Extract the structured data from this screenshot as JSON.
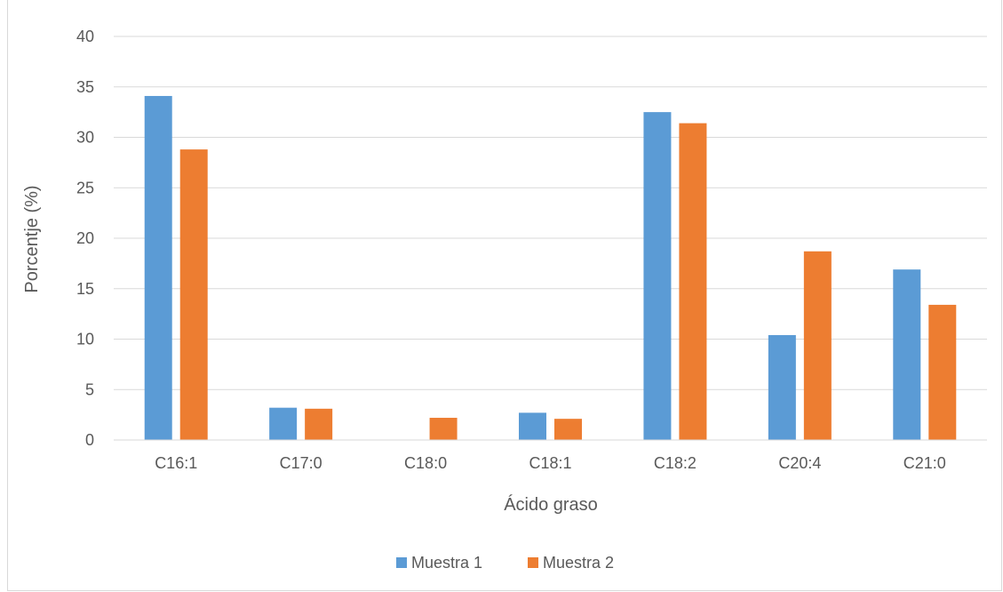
{
  "chart_data": {
    "type": "bar",
    "title": "",
    "xlabel": "Ácido graso",
    "ylabel": "Porcentje (%)",
    "ylim": [
      0,
      40
    ],
    "yticks": [
      0,
      5,
      10,
      15,
      20,
      25,
      30,
      35,
      40
    ],
    "categories": [
      "C16:1",
      "C17:0",
      "C18:0",
      "C18:1",
      "C18:2",
      "C20:4",
      "C21:0"
    ],
    "series": [
      {
        "name": "Muestra 1",
        "color": "#5b9bd5",
        "values": [
          34.1,
          3.2,
          0,
          2.7,
          32.5,
          10.4,
          16.9
        ]
      },
      {
        "name": "Muestra 2",
        "color": "#ed7d31",
        "values": [
          28.8,
          3.1,
          2.2,
          2.1,
          31.4,
          18.7,
          13.4
        ]
      }
    ],
    "grid": true,
    "legend_position": "bottom"
  }
}
